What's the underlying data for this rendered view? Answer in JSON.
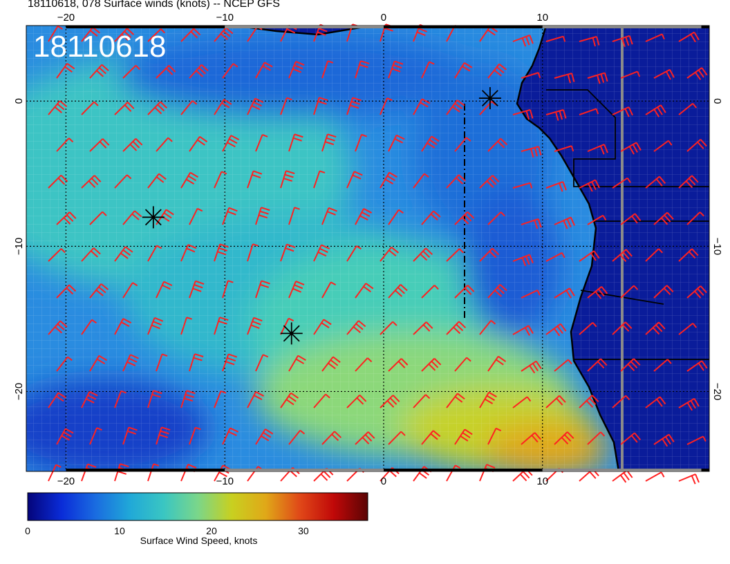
{
  "title": "18110618, 078 Surface winds (knots) -- NCEP GFS",
  "stamp": "18110618",
  "axes": {
    "lon_ticks": [
      {
        "v": -20,
        "label": "−20"
      },
      {
        "v": -10,
        "label": "−10"
      },
      {
        "v": 0,
        "label": "0"
      },
      {
        "v": 10,
        "label": "10"
      }
    ],
    "lat_ticks": [
      {
        "v": 0,
        "label": "0"
      },
      {
        "v": -10,
        "label": "−10"
      },
      {
        "v": -20,
        "label": "−20"
      }
    ],
    "lon_range": [
      -22.5,
      20.5
    ],
    "lat_range": [
      -25.5,
      5.2
    ],
    "grid": "dotted"
  },
  "colorbar": {
    "title": "Surface Wind Speed, knots",
    "min": 0,
    "max": 37,
    "ticks": [
      {
        "v": 0,
        "label": "0"
      },
      {
        "v": 10,
        "label": "10"
      },
      {
        "v": 20,
        "label": "20"
      },
      {
        "v": 30,
        "label": "30"
      }
    ],
    "colors": [
      "#04047a",
      "#0a2cd8",
      "#1a6ce0",
      "#20a8d8",
      "#3ac6c2",
      "#7ad68a",
      "#c8d020",
      "#e0a818",
      "#e04818",
      "#c00808",
      "#5a0404"
    ]
  },
  "markers": [
    {
      "name": "storm-marker",
      "lon": -14.5,
      "lat": -8
    },
    {
      "name": "storm-marker",
      "lon": -5.8,
      "lat": -16
    },
    {
      "name": "storm-marker",
      "lon": 6.7,
      "lat": 0.2
    }
  ],
  "barb_color": "#ff2020",
  "land_color": "#0a1c9a"
}
